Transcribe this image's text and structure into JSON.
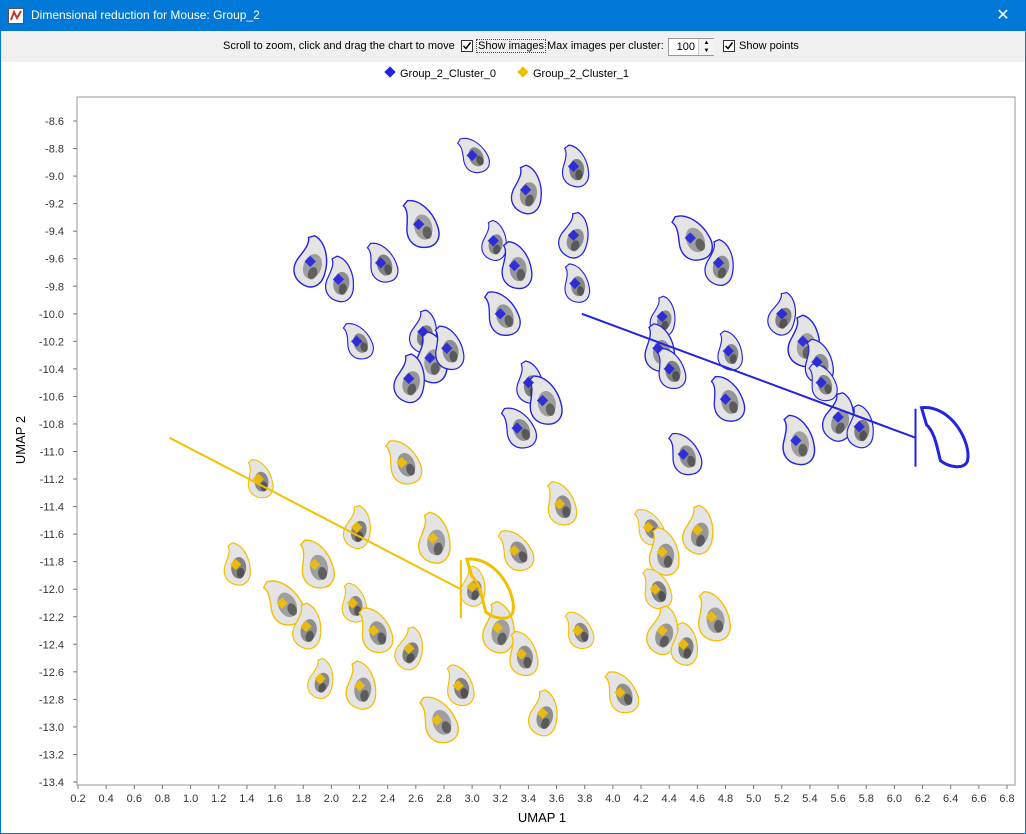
{
  "window": {
    "title": "Dimensional reduction for Mouse: Group_2",
    "close_icon": "close-icon"
  },
  "toolbar": {
    "hint": "Scroll to zoom, click and drag the chart to move",
    "show_images_label": "Show images",
    "show_images_checked": true,
    "max_images_label": "Max images per cluster:",
    "max_images_value": "100",
    "show_points_label": "Show points",
    "show_points_checked": true
  },
  "chart_data": {
    "type": "scatter",
    "xlabel": "UMAP 1",
    "ylabel": "UMAP 2",
    "xlim": [
      0.2,
      6.8
    ],
    "ylim": [
      -13.4,
      -8.6
    ],
    "xticks": [
      "0.2",
      "0.4",
      "0.6",
      "0.8",
      "1.0",
      "1.2",
      "1.4",
      "1.6",
      "1.8",
      "2.0",
      "2.2",
      "2.4",
      "2.6",
      "2.8",
      "3.0",
      "3.2",
      "3.4",
      "3.6",
      "3.8",
      "4.0",
      "4.2",
      "4.4",
      "4.6",
      "4.8",
      "5.0",
      "5.2",
      "5.4",
      "5.6",
      "5.8",
      "6.0",
      "6.2",
      "6.4",
      "6.6",
      "6.8"
    ],
    "yticks": [
      "-8.6",
      "-8.8",
      "-9.0",
      "-9.2",
      "-9.4",
      "-9.6",
      "-9.8",
      "-10.0",
      "-10.2",
      "-10.4",
      "-10.6",
      "-10.8",
      "-11.0",
      "-11.2",
      "-11.4",
      "-11.6",
      "-11.8",
      "-12.0",
      "-12.2",
      "-12.4",
      "-12.6",
      "-12.8",
      "-13.0",
      "-13.2",
      "-13.4"
    ],
    "legend_position": "top",
    "grid": false,
    "series": [
      {
        "name": "Group_2_Cluster_0",
        "color": "#2323e0",
        "points": [
          [
            3.0,
            -8.85
          ],
          [
            3.38,
            -9.1
          ],
          [
            3.72,
            -8.93
          ],
          [
            2.62,
            -9.35
          ],
          [
            3.72,
            -9.43
          ],
          [
            3.15,
            -9.47
          ],
          [
            3.3,
            -9.65
          ],
          [
            2.35,
            -9.63
          ],
          [
            1.85,
            -9.62
          ],
          [
            2.05,
            -9.75
          ],
          [
            3.73,
            -9.78
          ],
          [
            3.2,
            -10.0
          ],
          [
            2.65,
            -10.13
          ],
          [
            2.7,
            -10.32
          ],
          [
            2.82,
            -10.25
          ],
          [
            2.18,
            -10.2
          ],
          [
            2.55,
            -10.47
          ],
          [
            3.4,
            -10.5
          ],
          [
            3.5,
            -10.63
          ],
          [
            3.32,
            -10.83
          ],
          [
            4.35,
            -10.02
          ],
          [
            4.32,
            -10.25
          ],
          [
            4.4,
            -10.4
          ],
          [
            4.55,
            -9.45
          ],
          [
            4.75,
            -9.63
          ],
          [
            4.82,
            -10.27
          ],
          [
            4.8,
            -10.62
          ],
          [
            5.2,
            -10.0
          ],
          [
            5.35,
            -10.2
          ],
          [
            5.45,
            -10.35
          ],
          [
            5.48,
            -10.5
          ],
          [
            5.6,
            -10.75
          ],
          [
            5.75,
            -10.82
          ],
          [
            5.3,
            -10.92
          ],
          [
            4.5,
            -11.02
          ]
        ]
      },
      {
        "name": "Group_2_Cluster_1",
        "color": "#f3c000",
        "points": [
          [
            1.48,
            -11.2
          ],
          [
            2.5,
            -11.08
          ],
          [
            2.18,
            -11.55
          ],
          [
            2.72,
            -11.63
          ],
          [
            3.62,
            -11.38
          ],
          [
            4.25,
            -11.55
          ],
          [
            4.6,
            -11.57
          ],
          [
            1.32,
            -11.82
          ],
          [
            1.88,
            -11.82
          ],
          [
            3.3,
            -11.72
          ],
          [
            3.0,
            -11.98
          ],
          [
            4.35,
            -11.73
          ],
          [
            4.3,
            -12.0
          ],
          [
            1.65,
            -12.1
          ],
          [
            1.82,
            -12.27
          ],
          [
            2.15,
            -12.1
          ],
          [
            2.3,
            -12.3
          ],
          [
            2.55,
            -12.43
          ],
          [
            3.18,
            -12.28
          ],
          [
            3.35,
            -12.47
          ],
          [
            3.75,
            -12.3
          ],
          [
            4.35,
            -12.3
          ],
          [
            4.5,
            -12.4
          ],
          [
            4.7,
            -12.2
          ],
          [
            4.05,
            -12.75
          ],
          [
            1.92,
            -12.65
          ],
          [
            2.2,
            -12.7
          ],
          [
            2.9,
            -12.7
          ],
          [
            2.75,
            -12.95
          ],
          [
            3.5,
            -12.9
          ]
        ]
      }
    ],
    "cluster_axes": [
      {
        "series": "Group_2_Cluster_0",
        "from": [
          3.78,
          -10.0
        ],
        "to": [
          6.15,
          -10.9
        ]
      },
      {
        "series": "Group_2_Cluster_1",
        "from": [
          0.85,
          -10.9
        ],
        "to": [
          2.92,
          -12.0
        ]
      }
    ]
  }
}
